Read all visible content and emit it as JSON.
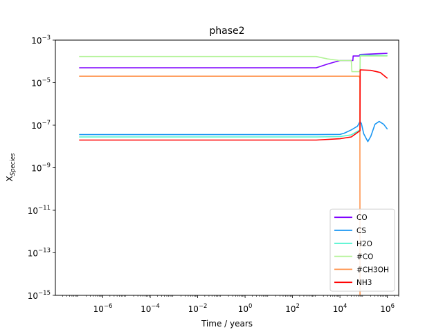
{
  "chart_data": {
    "type": "line",
    "title": "phase2",
    "xlabel": "Time / years",
    "ylabel": "X",
    "ylabel_sub": "Species",
    "x_scale": "log",
    "y_scale": "log",
    "xlim": [
      1e-08,
      3000000.0
    ],
    "ylim": [
      1e-15,
      0.001
    ],
    "x_ticks": [
      {
        "value": 1e-06,
        "base": "10",
        "exp": "−6"
      },
      {
        "value": 0.0001,
        "base": "10",
        "exp": "−4"
      },
      {
        "value": 0.01,
        "base": "10",
        "exp": "−2"
      },
      {
        "value": 1,
        "base": "10",
        "exp": "0"
      },
      {
        "value": 100.0,
        "base": "10",
        "exp": "2"
      },
      {
        "value": 10000.0,
        "base": "10",
        "exp": "4"
      },
      {
        "value": 1000000.0,
        "base": "10",
        "exp": "6"
      }
    ],
    "y_ticks": [
      {
        "value": 1e-15,
        "base": "10",
        "exp": "−15"
      },
      {
        "value": 1e-13,
        "base": "10",
        "exp": "−13"
      },
      {
        "value": 1e-11,
        "base": "10",
        "exp": "−11"
      },
      {
        "value": 1e-09,
        "base": "10",
        "exp": "−9"
      },
      {
        "value": 1e-07,
        "base": "10",
        "exp": "−7"
      },
      {
        "value": 1e-05,
        "base": "10",
        "exp": "−5"
      },
      {
        "value": 0.001,
        "base": "10",
        "exp": "−3"
      }
    ],
    "grid": false,
    "legend_position": "lower-right",
    "series": [
      {
        "name": "CO",
        "color": "#7f00ff",
        "points": [
          [
            1e-07,
            5e-05
          ],
          [
            1000,
            5e-05
          ],
          [
            3000,
            7.5e-05
          ],
          [
            10000,
            0.00011
          ],
          [
            35000,
            0.00011
          ],
          [
            36000,
            0.00018
          ],
          [
            65000,
            0.00018
          ],
          [
            70000,
            0.00021
          ],
          [
            1000000,
            0.00024
          ]
        ]
      },
      {
        "name": "CS",
        "color": "#1996f3",
        "points": [
          [
            1e-07,
            3.6e-08
          ],
          [
            1000,
            3.6e-08
          ],
          [
            10000,
            3.7e-08
          ],
          [
            15000,
            4.2e-08
          ],
          [
            30000,
            6e-08
          ],
          [
            55000,
            9e-08
          ],
          [
            70000,
            1.5e-07
          ],
          [
            80000,
            1.2e-07
          ],
          [
            100000,
            4e-08
          ],
          [
            150000,
            1.7e-08
          ],
          [
            200000,
            3e-08
          ],
          [
            300000,
            1.1e-07
          ],
          [
            450000,
            1.5e-07
          ],
          [
            700000,
            1.1e-07
          ],
          [
            1000000,
            6.5e-08
          ]
        ]
      },
      {
        "name": "H2O",
        "color": "#4df3ce",
        "points": [
          [
            1e-07,
            2.8e-08
          ],
          [
            1000,
            2.8e-08
          ],
          [
            10000,
            2.9e-08
          ],
          [
            30000,
            3.5e-08
          ],
          [
            70000,
            6e-08
          ],
          [
            71000,
            0.0002
          ],
          [
            1000000,
            0.00019
          ]
        ]
      },
      {
        "name": "#CO",
        "color": "#b2f396",
        "points": [
          [
            1e-07,
            0.00017
          ],
          [
            1000,
            0.00017
          ],
          [
            3000,
            0.00013
          ],
          [
            10000,
            0.00011
          ],
          [
            30000,
            0.00011
          ],
          [
            32000,
            3.3e-05
          ],
          [
            70000,
            3.3e-05
          ],
          [
            71000,
            0.00018
          ],
          [
            1000000,
            0.00018
          ]
        ]
      },
      {
        "name": "#CH3OH",
        "color": "#ff954f",
        "points": [
          [
            1e-07,
            2e-05
          ],
          [
            30000,
            2e-05
          ],
          [
            65000,
            2e-05
          ],
          [
            69000,
            1.6e-05
          ],
          [
            70000,
            1e-15
          ]
        ]
      },
      {
        "name": "NH3",
        "color": "#ff0000",
        "points": [
          [
            1e-07,
            2e-08
          ],
          [
            1000,
            2e-08
          ],
          [
            10000,
            2.3e-08
          ],
          [
            30000,
            2.8e-08
          ],
          [
            70000,
            5.5e-08
          ],
          [
            71000,
            4e-05
          ],
          [
            200000,
            3.8e-05
          ],
          [
            500000,
            3e-05
          ],
          [
            1000000,
            1.6e-05
          ]
        ]
      }
    ]
  }
}
